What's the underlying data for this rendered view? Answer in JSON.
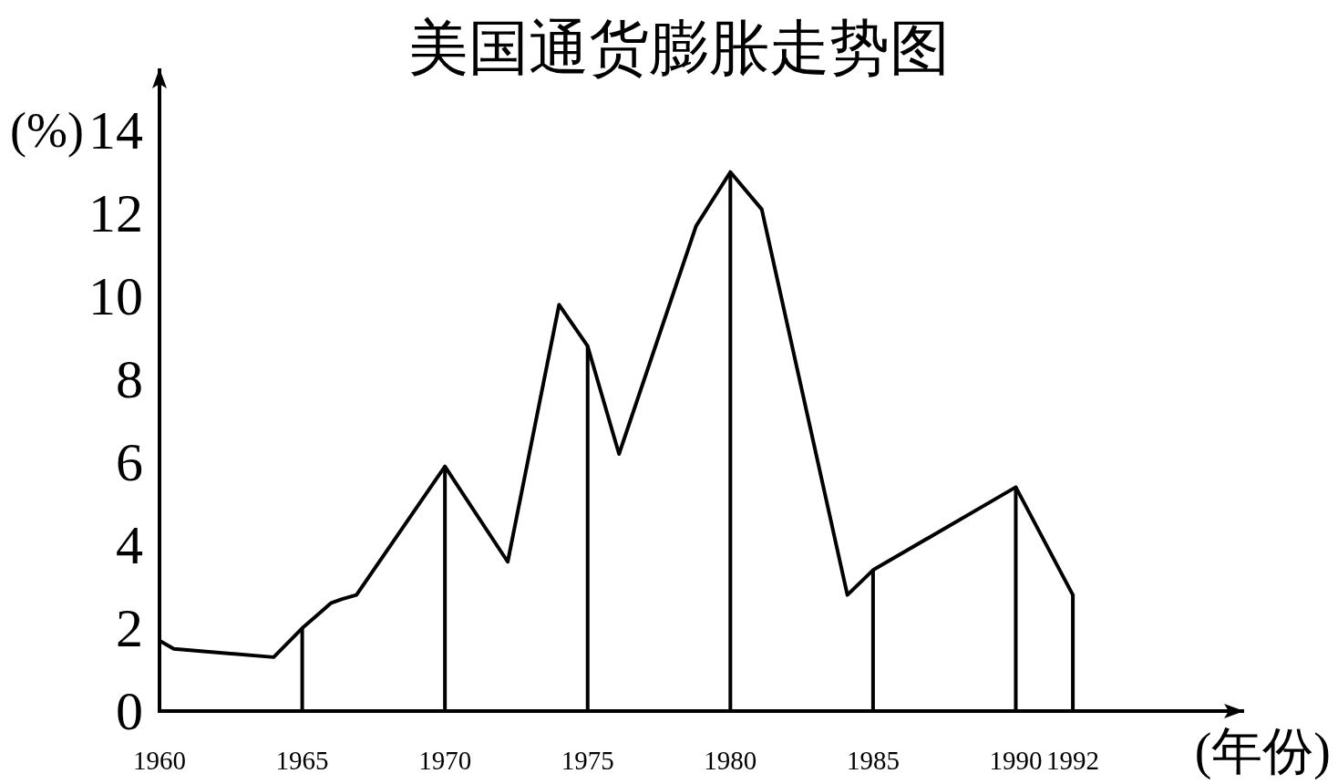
{
  "chart_data": {
    "type": "line",
    "title": "美国通货膨胀走势图",
    "xlabel": "(年份)",
    "ylabel": "(%)",
    "xlim": [
      1960,
      1998
    ],
    "xticks": [
      1960,
      1965,
      1970,
      1975,
      1980,
      1985,
      1990,
      1992
    ],
    "ylim": [
      0,
      15.5
    ],
    "yticks": [
      0,
      2,
      4,
      6,
      8,
      10,
      12,
      14
    ],
    "series": [
      {
        "color": "#000000",
        "x": [
          1960,
          1960.5,
          1964,
          1965,
          1965.5,
          1966,
          1966.4,
          1966.9,
          1970,
          1972.2,
          1974,
          1975,
          1976.1,
          1978.8,
          1980,
          1981.1,
          1984.1,
          1985,
          1990,
          1992
        ],
        "values": [
          1.7,
          1.5,
          1.3,
          2.0,
          2.3,
          2.6,
          2.7,
          2.8,
          5.9,
          3.6,
          9.8,
          8.8,
          6.2,
          11.7,
          13.0,
          12.1,
          2.8,
          3.4,
          5.4,
          2.8
        ]
      },
      {
        "type": "bar",
        "color": "#000000",
        "x": [
          1965,
          1970,
          1975,
          1980,
          1985,
          1990,
          1992
        ],
        "values": [
          2.0,
          5.9,
          8.8,
          13.0,
          3.4,
          5.4,
          2.8
        ]
      }
    ]
  }
}
